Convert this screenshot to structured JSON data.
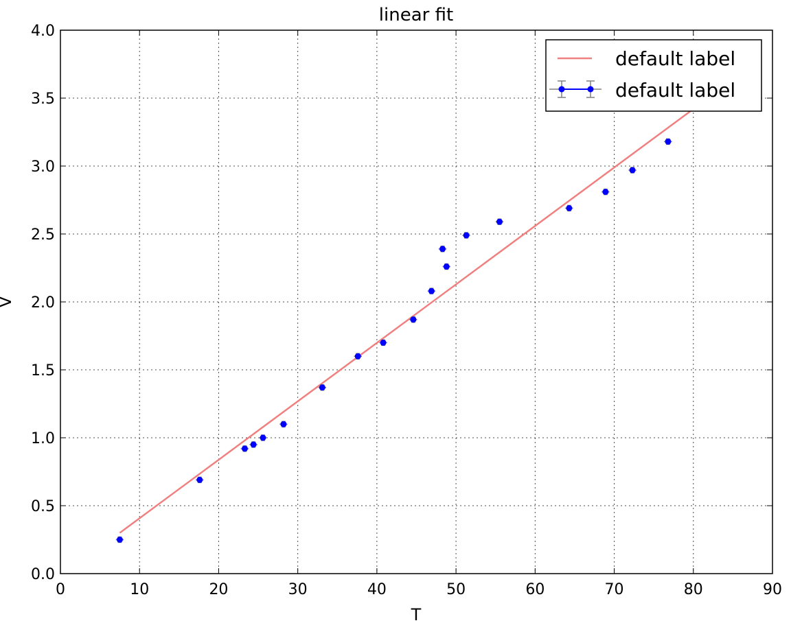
{
  "chart_data": {
    "type": "scatter",
    "title": "linear fit",
    "xlabel": "T",
    "ylabel": "V",
    "xlim": [
      0,
      90
    ],
    "ylim": [
      0.0,
      4.0
    ],
    "xticks": [
      "0",
      "10",
      "20",
      "30",
      "40",
      "50",
      "60",
      "70",
      "80",
      "90"
    ],
    "yticks": [
      "0.0",
      "0.5",
      "1.0",
      "1.5",
      "2.0",
      "2.5",
      "3.0",
      "3.5",
      "4.0"
    ],
    "grid": true,
    "legend_position": "top-right",
    "series": [
      {
        "name": "default label",
        "kind": "line",
        "color": "#f08080",
        "x": [
          7.5,
          80
        ],
        "y": [
          0.3,
          3.42
        ]
      },
      {
        "name": "default label",
        "kind": "errorbar",
        "color": "#0000ff",
        "errorbar_color": "#808080",
        "x": [
          7.5,
          17.6,
          23.3,
          24.4,
          25.6,
          28.2,
          33.1,
          37.6,
          40.8,
          44.6,
          46.9,
          48.3,
          48.8,
          51.3,
          55.5,
          64.3,
          68.9,
          72.3,
          76.8
        ],
        "y": [
          0.25,
          0.69,
          0.92,
          0.95,
          1.0,
          1.1,
          1.37,
          1.6,
          1.7,
          1.87,
          2.08,
          2.39,
          2.26,
          2.49,
          2.59,
          2.69,
          2.81,
          2.97,
          3.18
        ],
        "x_error": 0.5,
        "y_error": 0.02
      }
    ]
  }
}
